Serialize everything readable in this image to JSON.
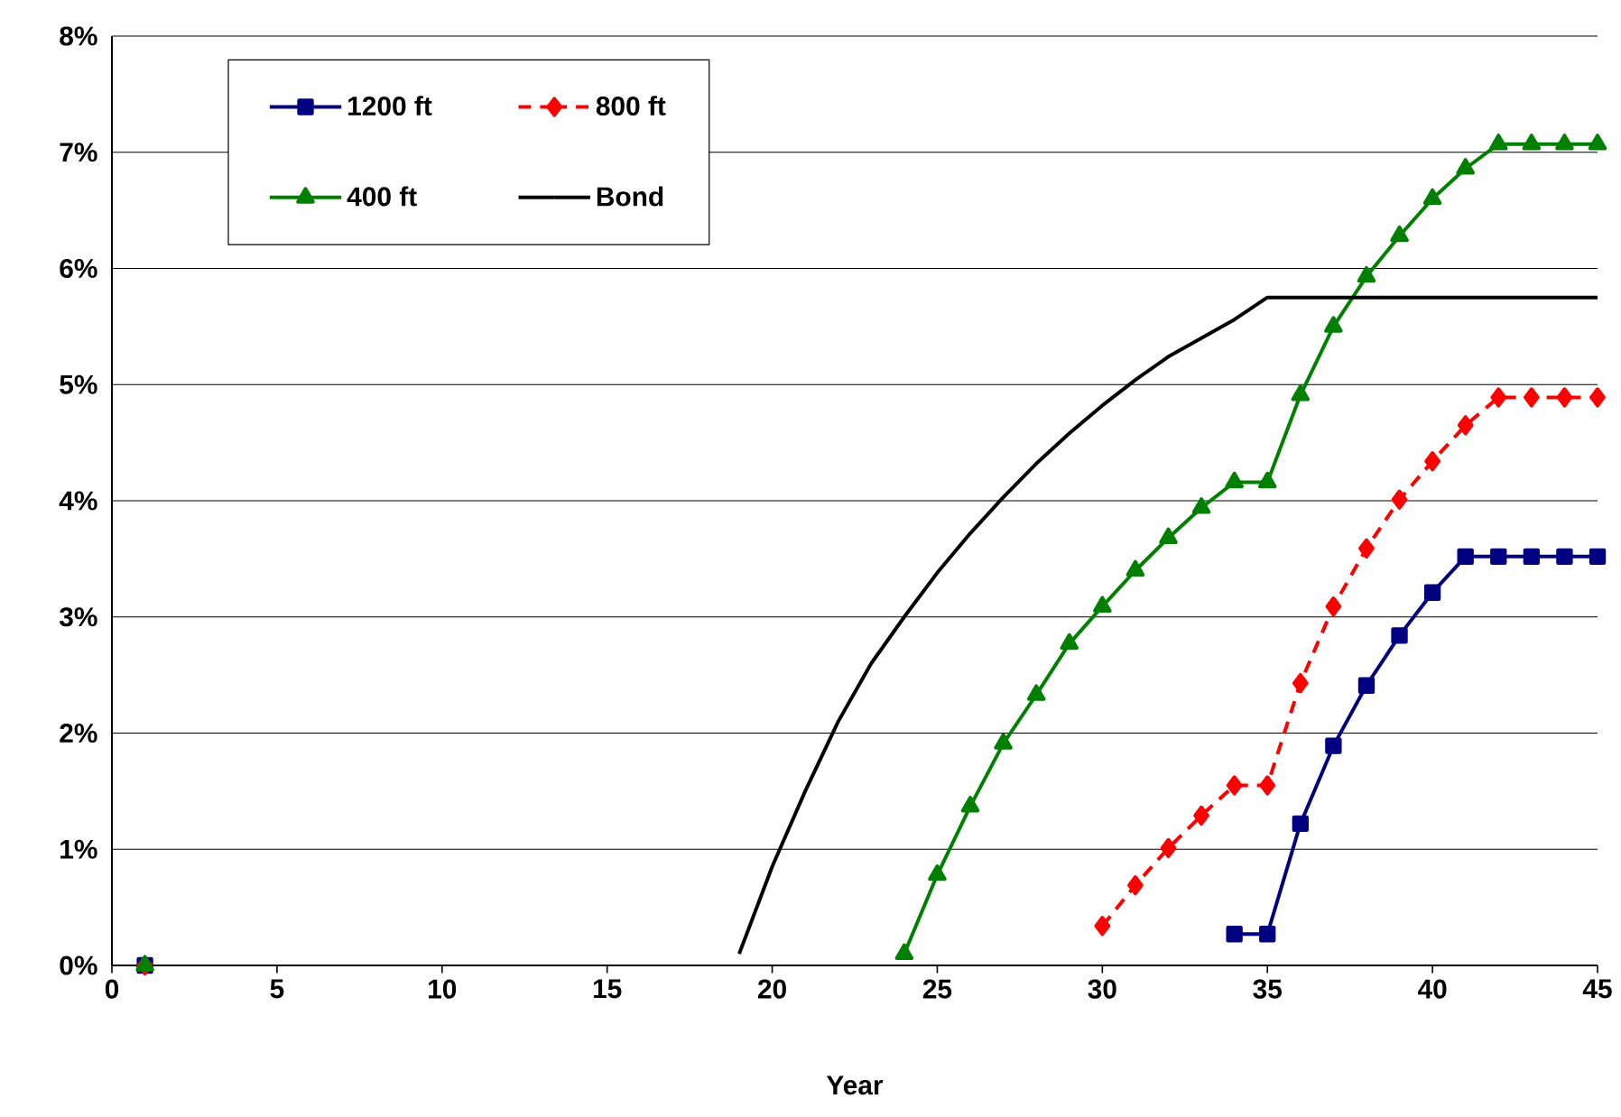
{
  "chart_data": {
    "type": "line",
    "xlabel": "Year",
    "x": [
      1,
      2,
      3,
      4,
      5,
      6,
      7,
      8,
      9,
      10,
      11,
      12,
      13,
      14,
      15,
      16,
      17,
      18,
      19,
      20,
      21,
      22,
      23,
      24,
      25,
      26,
      27,
      28,
      29,
      30,
      31,
      32,
      33,
      34,
      35,
      36,
      37,
      38,
      39,
      40,
      41,
      42,
      43,
      44,
      45
    ],
    "xlim": [
      0,
      45
    ],
    "xticks": [
      0,
      5,
      10,
      15,
      20,
      25,
      30,
      35,
      40,
      45
    ],
    "ylim": [
      0,
      8
    ],
    "yticks": [
      {
        "value": 0,
        "label": "0%"
      },
      {
        "value": 1,
        "label": "1%"
      },
      {
        "value": 2,
        "label": "2%"
      },
      {
        "value": 3,
        "label": "3%"
      },
      {
        "value": 4,
        "label": "4%"
      },
      {
        "value": 5,
        "label": "5%"
      },
      {
        "value": 6,
        "label": "6%"
      },
      {
        "value": 7,
        "label": "7%"
      },
      {
        "value": 8,
        "label": "8%"
      }
    ],
    "grid": "y",
    "legend": "top left",
    "series": [
      {
        "name": "1200 ft",
        "color": "#000080",
        "marker": "square",
        "line_style": "solid",
        "values": [
          0,
          null,
          null,
          null,
          null,
          null,
          null,
          null,
          null,
          null,
          null,
          null,
          null,
          null,
          null,
          null,
          null,
          null,
          null,
          null,
          null,
          null,
          null,
          null,
          null,
          null,
          null,
          null,
          null,
          null,
          null,
          null,
          null,
          0.27,
          0.27,
          1.22,
          1.89,
          2.41,
          2.84,
          3.21,
          3.52,
          3.52,
          3.52,
          3.52,
          3.52
        ]
      },
      {
        "name": "800 ft",
        "color": "#ff0000",
        "marker": "diamond",
        "line_style": "dashed",
        "values": [
          0,
          null,
          null,
          null,
          null,
          null,
          null,
          null,
          null,
          null,
          null,
          null,
          null,
          null,
          null,
          null,
          null,
          null,
          null,
          null,
          null,
          null,
          null,
          null,
          null,
          null,
          null,
          null,
          null,
          0.34,
          0.69,
          1.01,
          1.29,
          1.55,
          1.55,
          2.43,
          3.09,
          3.59,
          4.01,
          4.34,
          4.65,
          4.89,
          4.89,
          4.89,
          4.89
        ]
      },
      {
        "name": "400 ft",
        "color": "#008000",
        "marker": "triangle",
        "line_style": "solid",
        "values": [
          0,
          null,
          null,
          null,
          null,
          null,
          null,
          null,
          null,
          null,
          null,
          null,
          null,
          null,
          null,
          null,
          null,
          null,
          null,
          null,
          null,
          null,
          null,
          0.1,
          0.78,
          1.37,
          1.91,
          2.33,
          2.77,
          3.09,
          3.4,
          3.68,
          3.94,
          4.16,
          4.16,
          4.91,
          5.5,
          5.93,
          6.28,
          6.6,
          6.86,
          7.07,
          7.07,
          7.07,
          7.07
        ]
      },
      {
        "name": "Bond",
        "color": "#000000",
        "marker": "none",
        "line_style": "solid",
        "x": [
          19,
          20,
          21,
          22,
          23,
          24,
          25,
          26,
          27,
          28,
          29,
          30,
          31,
          32,
          33,
          34,
          35,
          45
        ],
        "values": [
          0.1,
          0.85,
          1.5,
          2.1,
          2.6,
          3.0,
          3.38,
          3.72,
          4.03,
          4.32,
          4.58,
          4.82,
          5.04,
          5.24,
          5.4,
          5.56,
          5.75,
          5.75
        ]
      }
    ]
  }
}
